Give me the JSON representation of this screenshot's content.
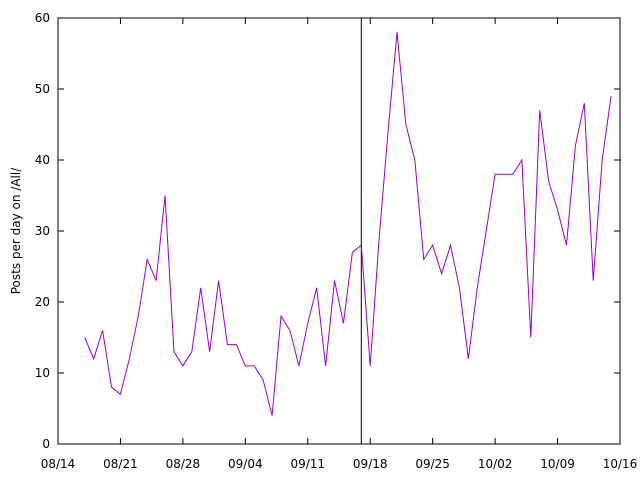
{
  "chart_data": {
    "type": "line",
    "title": "",
    "xlabel": "",
    "ylabel": "Posts per day on /All/",
    "x_axis_kind": "date",
    "xlim": [
      "08/14",
      "10/16"
    ],
    "ylim": [
      0,
      60
    ],
    "xticks": [
      "08/14",
      "08/21",
      "08/28",
      "09/04",
      "09/11",
      "09/18",
      "09/25",
      "10/02",
      "10/09",
      "10/16"
    ],
    "yticks": [
      0,
      10,
      20,
      30,
      40,
      50,
      60
    ],
    "grid": false,
    "legend": "none",
    "vertical_marker": "09/17",
    "series": [
      {
        "color": "#9400d3",
        "points": [
          [
            "08/17",
            15
          ],
          [
            "08/18",
            12
          ],
          [
            "08/19",
            16
          ],
          [
            "08/20",
            8
          ],
          [
            "08/21",
            7
          ],
          [
            "08/22",
            12
          ],
          [
            "08/23",
            18
          ],
          [
            "08/24",
            26
          ],
          [
            "08/25",
            23
          ],
          [
            "08/26",
            35
          ],
          [
            "08/27",
            13
          ],
          [
            "08/28",
            11
          ],
          [
            "08/29",
            13
          ],
          [
            "08/30",
            22
          ],
          [
            "08/31",
            13
          ],
          [
            "09/01",
            23
          ],
          [
            "09/02",
            14
          ],
          [
            "09/03",
            14
          ],
          [
            "09/04",
            11
          ],
          [
            "09/05",
            11
          ],
          [
            "09/06",
            9
          ],
          [
            "09/07",
            4
          ],
          [
            "09/08",
            18
          ],
          [
            "09/09",
            16
          ],
          [
            "09/10",
            11
          ],
          [
            "09/11",
            17
          ],
          [
            "09/12",
            22
          ],
          [
            "09/13",
            11
          ],
          [
            "09/14",
            23
          ],
          [
            "09/15",
            17
          ],
          [
            "09/16",
            27
          ],
          [
            "09/17",
            28
          ],
          [
            "09/18",
            11
          ],
          [
            "09/19",
            29
          ],
          [
            "09/20",
            44
          ],
          [
            "09/21",
            58
          ],
          [
            "09/22",
            45
          ],
          [
            "09/23",
            40
          ],
          [
            "09/24",
            26
          ],
          [
            "09/25",
            28
          ],
          [
            "09/26",
            24
          ],
          [
            "09/27",
            28
          ],
          [
            "09/28",
            22
          ],
          [
            "09/29",
            12
          ],
          [
            "09/30",
            22
          ],
          [
            "10/01",
            30
          ],
          [
            "10/02",
            38
          ],
          [
            "10/03",
            38
          ],
          [
            "10/04",
            38
          ],
          [
            "10/05",
            40
          ],
          [
            "10/06",
            15
          ],
          [
            "10/07",
            47
          ],
          [
            "10/08",
            37
          ],
          [
            "10/09",
            33
          ],
          [
            "10/10",
            28
          ],
          [
            "10/11",
            42
          ],
          [
            "10/12",
            48
          ],
          [
            "10/13",
            23
          ],
          [
            "10/14",
            40
          ],
          [
            "10/15",
            49
          ]
        ]
      }
    ]
  }
}
